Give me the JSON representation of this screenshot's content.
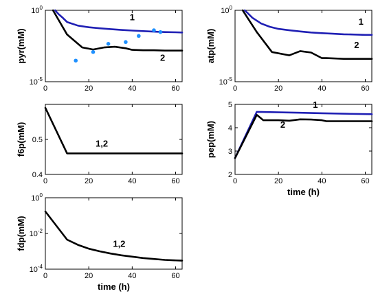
{
  "colors": {
    "series_1": "#1f1fb4",
    "series_2": "#000000",
    "experimental": "#1e90ff"
  },
  "chart_data": [
    {
      "id": "pyr",
      "type": "line",
      "ylabel": "pyr(mM)",
      "xlabel": "",
      "ylog": true,
      "xlim": [
        0,
        63
      ],
      "ylim": [
        1e-05,
        1
      ],
      "xticks": [
        0,
        20,
        40,
        60
      ],
      "xtick_labels": [
        "0",
        "20",
        "40",
        "60"
      ],
      "yticks": [
        1e-05,
        1
      ],
      "ytick_labels": [
        {
          "base": "10",
          "exp": "-5"
        },
        {
          "base": "10",
          "exp": "0"
        }
      ],
      "series": [
        {
          "name": "1",
          "color_key": "series_1",
          "x": [
            4.5,
            6,
            8,
            10,
            15,
            20,
            25,
            30,
            35,
            40,
            45,
            50,
            55,
            60,
            63
          ],
          "y": [
            1.0,
            0.55,
            0.3,
            0.15,
            0.085,
            0.065,
            0.055,
            0.048,
            0.042,
            0.038,
            0.035,
            0.032,
            0.03,
            0.029,
            0.028
          ]
        },
        {
          "name": "2",
          "color_key": "series_2",
          "x": [
            3.5,
            10,
            17,
            22,
            27,
            32,
            37,
            40,
            45,
            50,
            55,
            60,
            63
          ],
          "y": [
            1.0,
            0.02,
            0.0025,
            0.0018,
            0.0025,
            0.0028,
            0.0022,
            0.0017,
            0.0016,
            0.0016,
            0.0015,
            0.0015,
            0.0015
          ]
        }
      ],
      "points": {
        "color_key": "experimental",
        "x": [
          14,
          22,
          29,
          37,
          43,
          50,
          53
        ],
        "y": [
          0.0003,
          0.0012,
          0.0045,
          0.006,
          0.016,
          0.04,
          0.03
        ]
      },
      "labels": [
        {
          "text": "1",
          "x": 40,
          "y": 0.2
        },
        {
          "text": "2",
          "x": 54,
          "y": 0.0003
        }
      ]
    },
    {
      "id": "atp",
      "type": "line",
      "ylabel": "atp(mM)",
      "xlabel": "",
      "ylog": true,
      "xlim": [
        0,
        63
      ],
      "ylim": [
        1e-05,
        1
      ],
      "xticks": [
        0,
        20,
        40,
        60
      ],
      "xtick_labels": [
        "0",
        "20",
        "40",
        "60"
      ],
      "yticks": [
        1e-05,
        1
      ],
      "ytick_labels": [
        {
          "base": "10",
          "exp": "-5"
        },
        {
          "base": "10",
          "exp": "0"
        }
      ],
      "series": [
        {
          "name": "1",
          "color_key": "series_1",
          "x": [
            4.5,
            8,
            12,
            16,
            20,
            25,
            30,
            35,
            40,
            45,
            50,
            55,
            60,
            63
          ],
          "y": [
            1.0,
            0.3,
            0.12,
            0.07,
            0.05,
            0.04,
            0.033,
            0.028,
            0.025,
            0.023,
            0.021,
            0.02,
            0.019,
            0.019
          ]
        },
        {
          "name": "2",
          "color_key": "series_2",
          "x": [
            3.5,
            10,
            17,
            25,
            30,
            35,
            40,
            42,
            50,
            55,
            60,
            63
          ],
          "y": [
            1.0,
            0.03,
            0.0012,
            0.0007,
            0.0014,
            0.0011,
            0.00045,
            0.00045,
            0.0004,
            0.0004,
            0.0004,
            0.0004
          ]
        }
      ],
      "labels": [
        {
          "text": "1",
          "x": 58,
          "y": 0.1
        },
        {
          "text": "2",
          "x": 56,
          "y": 0.0023
        }
      ]
    },
    {
      "id": "f6p",
      "type": "line",
      "ylabel": "f6p(mM)",
      "xlabel": "",
      "ylog": false,
      "xlim": [
        0,
        63
      ],
      "ylim": [
        0.4,
        0.6
      ],
      "xticks": [
        0,
        20,
        40,
        60
      ],
      "xtick_labels": [
        "0",
        "20",
        "40",
        "60"
      ],
      "yticks": [
        0.4,
        0.5
      ],
      "ytick_labels": [
        "0.4",
        "0.5"
      ],
      "series": [
        {
          "name": "1,2",
          "color_key": "series_2",
          "x": [
            0,
            10,
            20,
            40,
            63
          ],
          "y": [
            0.59,
            0.46,
            0.46,
            0.46,
            0.46
          ]
        }
      ],
      "labels": [
        {
          "text": "1,2",
          "x": 26,
          "y": 0.479
        }
      ]
    },
    {
      "id": "pep",
      "type": "line",
      "ylabel": "pep(mM)",
      "xlabel": "time (h)",
      "ylog": false,
      "xlim": [
        0,
        63
      ],
      "ylim": [
        2,
        5
      ],
      "xticks": [
        0,
        20,
        40,
        60
      ],
      "xtick_labels": [
        "0",
        "20",
        "40",
        "60"
      ],
      "yticks": [
        2,
        3,
        4,
        5
      ],
      "ytick_labels": [
        "2",
        "3",
        "4",
        "5"
      ],
      "series": [
        {
          "name": "1",
          "color_key": "series_1",
          "x": [
            0,
            10,
            20,
            30,
            40,
            50,
            63
          ],
          "y": [
            2.7,
            4.68,
            4.66,
            4.64,
            4.62,
            4.6,
            4.58
          ]
        },
        {
          "name": "2",
          "color_key": "series_2",
          "x": [
            0,
            10,
            13,
            20,
            25,
            30,
            35,
            40,
            42,
            50,
            63
          ],
          "y": [
            2.7,
            4.55,
            4.32,
            4.32,
            4.3,
            4.36,
            4.35,
            4.32,
            4.28,
            4.28,
            4.28
          ]
        }
      ],
      "labels": [
        {
          "text": "1",
          "x": 37,
          "y": 4.85
        },
        {
          "text": "2",
          "x": 22,
          "y": 4.0
        }
      ]
    },
    {
      "id": "fdp",
      "type": "line",
      "ylabel": "fdp(mM)",
      "xlabel": "time (h)",
      "ylog": true,
      "xlim": [
        0,
        63
      ],
      "ylim": [
        0.0001,
        1
      ],
      "xticks": [
        0,
        20,
        40,
        60
      ],
      "xtick_labels": [
        "0",
        "20",
        "40",
        "60"
      ],
      "yticks": [
        0.0001,
        0.01,
        1
      ],
      "ytick_labels": [
        {
          "base": "10",
          "exp": "-4"
        },
        {
          "base": "10",
          "exp": "-2"
        },
        {
          "base": "10",
          "exp": "0"
        }
      ],
      "series": [
        {
          "name": "1,2",
          "color_key": "series_2",
          "x": [
            0,
            10,
            15,
            20,
            25,
            30,
            35,
            40,
            45,
            50,
            55,
            63
          ],
          "y": [
            0.17,
            0.0045,
            0.0023,
            0.0014,
            0.001,
            0.00075,
            0.0006,
            0.0005,
            0.00042,
            0.00037,
            0.00033,
            0.0003
          ]
        }
      ],
      "labels": [
        {
          "text": "1,2",
          "x": 34,
          "y": 0.0018
        }
      ]
    }
  ]
}
